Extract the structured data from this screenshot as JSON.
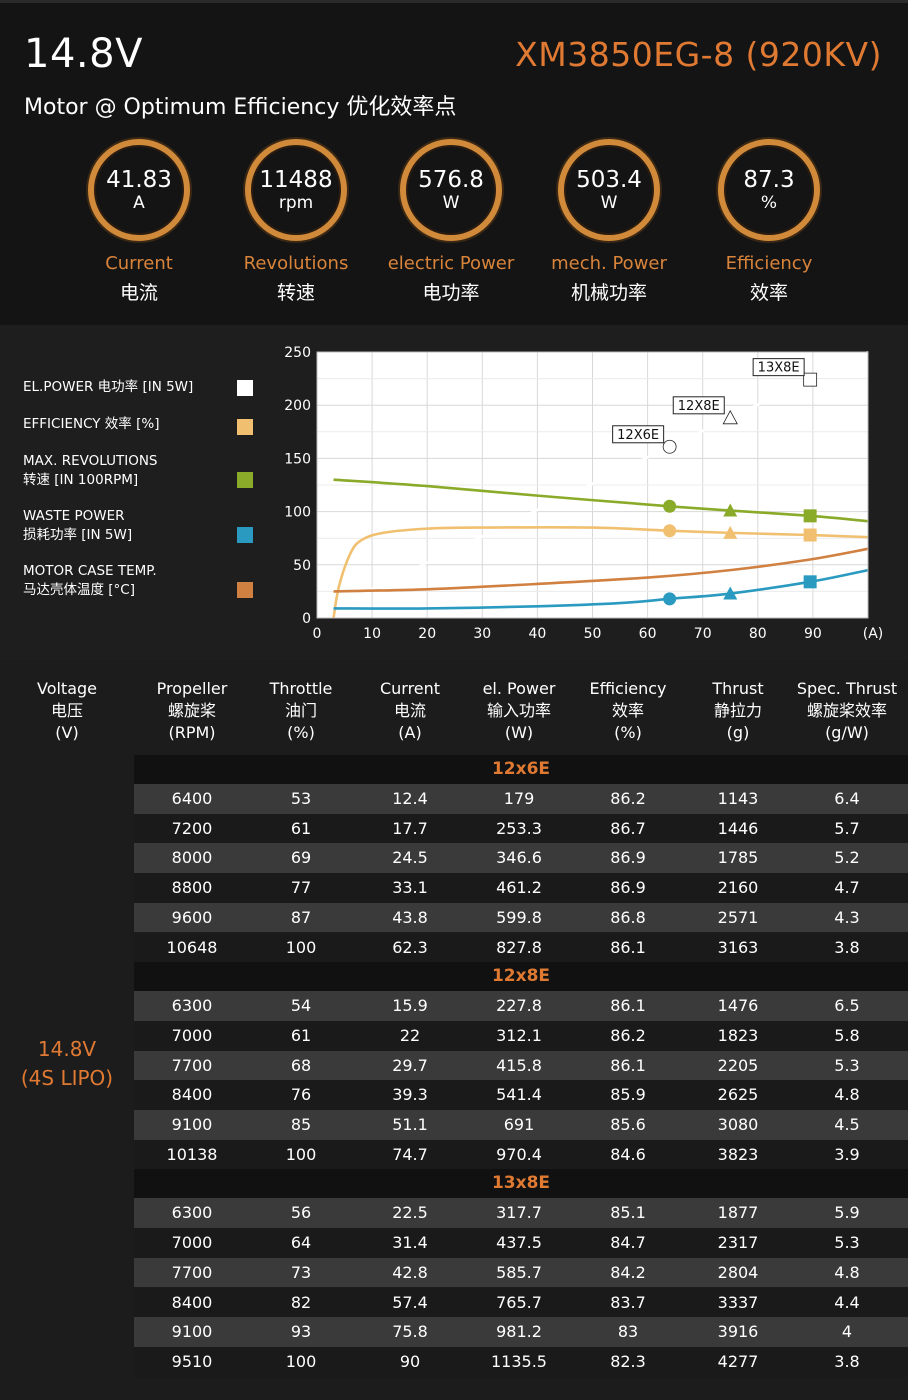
{
  "header": {
    "voltage": "14.8V",
    "model": "XM3850EG-8 (920KV)",
    "subtitle": "Motor @ Optimum Efficiency  优化效率点"
  },
  "metrics": [
    {
      "value": "41.83",
      "unit": "A",
      "label_en": "Current",
      "label_cn": "电流"
    },
    {
      "value": "11488",
      "unit": "rpm",
      "label_en": "Revolutions",
      "label_cn": "转速"
    },
    {
      "value": "576.8",
      "unit": "W",
      "label_en": "electric Power",
      "label_cn": "电功率"
    },
    {
      "value": "503.4",
      "unit": "W",
      "label_en": "mech. Power",
      "label_cn": "机械功率"
    },
    {
      "value": "87.3",
      "unit": "%",
      "label_en": "Efficiency",
      "label_cn": "效率"
    }
  ],
  "legend": [
    {
      "line1": "EL.POWER 电功率 [IN 5W]",
      "line2": "",
      "color": "#ffffff"
    },
    {
      "line1": "EFFICIENCY 效率 [%]",
      "line2": "",
      "color": "#f0c070"
    },
    {
      "line1": "MAX. REVOLUTIONS",
      "line2": "转速 [IN 100RPM]",
      "color": "#8aaa2a"
    },
    {
      "line1": "WASTE POWER",
      "line2": "损耗功率 [IN 5W]",
      "color": "#2a9ac0"
    },
    {
      "line1": "MOTOR CASE TEMP.",
      "line2": "马达壳体温度 [°C]",
      "color": "#d08040"
    }
  ],
  "chart_data": {
    "type": "line",
    "x_unit_label": "(A)",
    "xlim": [
      0,
      100
    ],
    "ylim": [
      0,
      250
    ],
    "x_ticks": [
      0,
      10,
      20,
      30,
      40,
      50,
      60,
      70,
      80,
      90
    ],
    "y_ticks": [
      0,
      50,
      100,
      150,
      200,
      250
    ],
    "grid": true,
    "series": [
      {
        "name": "EL.POWER 电功率 [IN 5W]",
        "color": "#ffffff",
        "x": [
          3,
          30,
          64,
          75,
          89.5,
          100
        ],
        "y": [
          10,
          83,
          170,
          205,
          227,
          250
        ]
      },
      {
        "name": "EFFICIENCY 效率 [%]",
        "color": "#f0c070",
        "x": [
          3,
          4,
          6,
          8,
          12,
          20,
          30,
          50,
          64,
          75,
          89.5,
          100
        ],
        "y": [
          0,
          30,
          60,
          73,
          80,
          84,
          85,
          85,
          82,
          80,
          78,
          76
        ]
      },
      {
        "name": "MAX. REVOLUTIONS 转速 [IN 100RPM]",
        "color": "#8aaa2a",
        "x": [
          3,
          20,
          40,
          64,
          75,
          89.5,
          100
        ],
        "y": [
          130,
          124,
          115,
          105,
          101,
          96,
          91
        ]
      },
      {
        "name": "WASTE POWER 损耗功率 [IN 5W]",
        "color": "#2a9ac0",
        "x": [
          3,
          20,
          40,
          55,
          64,
          75,
          89.5,
          100
        ],
        "y": [
          9,
          9,
          11,
          14,
          18,
          23,
          34,
          45
        ]
      },
      {
        "name": "MOTOR CASE TEMP. 马达壳体温度 [°C]",
        "color": "#d08040",
        "x": [
          3,
          20,
          40,
          60,
          75,
          89.5,
          100
        ],
        "y": [
          25,
          27,
          32,
          38,
          45,
          55,
          65
        ]
      }
    ],
    "markers": [
      {
        "label": "12X6E",
        "shape": "circle",
        "x": 64
      },
      {
        "label": "12X8E",
        "shape": "triangle",
        "x": 75
      },
      {
        "label": "13X8E",
        "shape": "square",
        "x": 89.5
      }
    ]
  },
  "table": {
    "headers": [
      {
        "en": "Voltage",
        "cn": "电压",
        "unit": "(V)"
      },
      {
        "en": "Propeller",
        "cn": "螺旋桨",
        "unit": "(RPM)"
      },
      {
        "en": "Throttle",
        "cn": "油门",
        "unit": "(%)"
      },
      {
        "en": "Current",
        "cn": "电流",
        "unit": "(A)"
      },
      {
        "en": "el. Power",
        "cn": "输入功率",
        "unit": "(W)"
      },
      {
        "en": "Efficiency",
        "cn": "效率",
        "unit": "(%)"
      },
      {
        "en": "Thrust",
        "cn": "静拉力",
        "unit": "(g)"
      },
      {
        "en": "Spec. Thrust",
        "cn": "螺旋桨效率",
        "unit": "(g/W)"
      }
    ],
    "voltage_line1": "14.8V",
    "voltage_line2": "(4S LIPO)",
    "groups": [
      {
        "title": "12x6E",
        "rows": [
          [
            "6400",
            "53",
            "12.4",
            "179",
            "86.2",
            "1143",
            "6.4"
          ],
          [
            "7200",
            "61",
            "17.7",
            "253.3",
            "86.7",
            "1446",
            "5.7"
          ],
          [
            "8000",
            "69",
            "24.5",
            "346.6",
            "86.9",
            "1785",
            "5.2"
          ],
          [
            "8800",
            "77",
            "33.1",
            "461.2",
            "86.9",
            "2160",
            "4.7"
          ],
          [
            "9600",
            "87",
            "43.8",
            "599.8",
            "86.8",
            "2571",
            "4.3"
          ],
          [
            "10648",
            "100",
            "62.3",
            "827.8",
            "86.1",
            "3163",
            "3.8"
          ]
        ]
      },
      {
        "title": "12x8E",
        "rows": [
          [
            "6300",
            "54",
            "15.9",
            "227.8",
            "86.1",
            "1476",
            "6.5"
          ],
          [
            "7000",
            "61",
            "22",
            "312.1",
            "86.2",
            "1823",
            "5.8"
          ],
          [
            "7700",
            "68",
            "29.7",
            "415.8",
            "86.1",
            "2205",
            "5.3"
          ],
          [
            "8400",
            "76",
            "39.3",
            "541.4",
            "85.9",
            "2625",
            "4.8"
          ],
          [
            "9100",
            "85",
            "51.1",
            "691",
            "85.6",
            "3080",
            "4.5"
          ],
          [
            "10138",
            "100",
            "74.7",
            "970.4",
            "84.6",
            "3823",
            "3.9"
          ]
        ]
      },
      {
        "title": "13x8E",
        "rows": [
          [
            "6300",
            "56",
            "22.5",
            "317.7",
            "85.1",
            "1877",
            "5.9"
          ],
          [
            "7000",
            "64",
            "31.4",
            "437.5",
            "84.7",
            "2317",
            "5.3"
          ],
          [
            "7700",
            "73",
            "42.8",
            "585.7",
            "84.2",
            "2804",
            "4.8"
          ],
          [
            "8400",
            "82",
            "57.4",
            "765.7",
            "83.7",
            "3337",
            "4.4"
          ],
          [
            "9100",
            "93",
            "75.8",
            "981.2",
            "83",
            "3916",
            "4"
          ],
          [
            "9510",
            "100",
            "90",
            "1135.5",
            "82.3",
            "4277",
            "3.8"
          ]
        ]
      }
    ]
  }
}
